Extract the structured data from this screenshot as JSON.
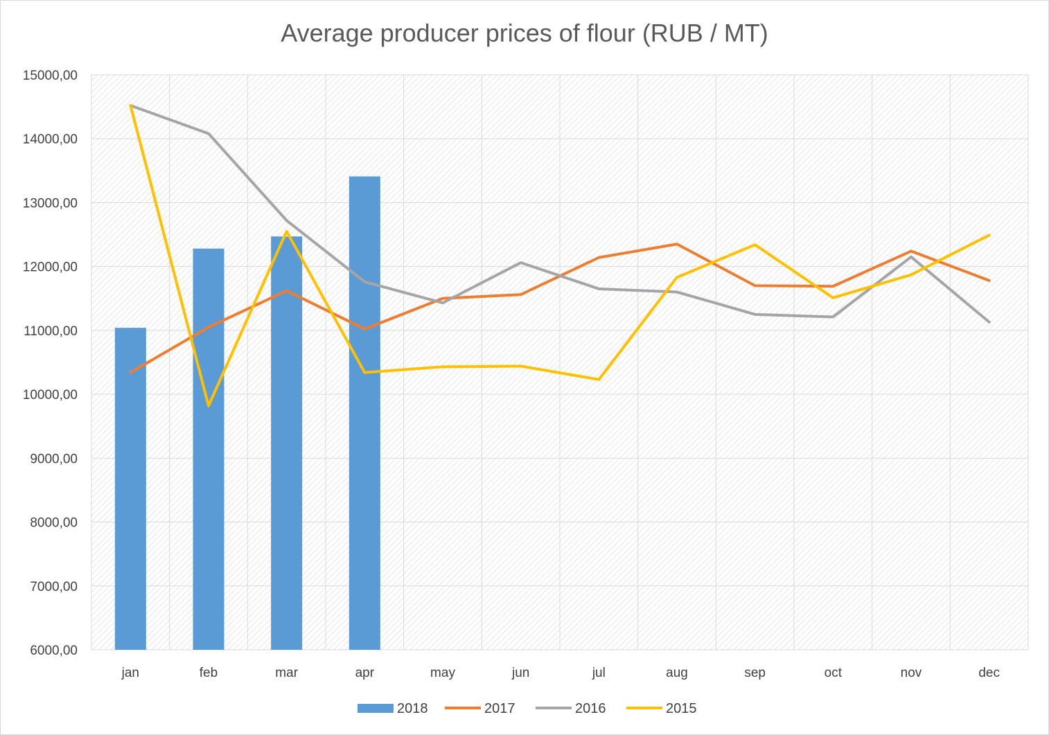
{
  "chart_data": {
    "type": "bar",
    "title": "Average producer prices of flour (RUB / MT)",
    "xlabel": "",
    "ylabel": "",
    "categories": [
      "jan",
      "feb",
      "mar",
      "apr",
      "may",
      "jun",
      "jul",
      "aug",
      "sep",
      "oct",
      "nov",
      "dec"
    ],
    "ylim": [
      6000,
      15000
    ],
    "yticks": [
      "6000,00",
      "7000,00",
      "8000,00",
      "9000,00",
      "10000,00",
      "11000,00",
      "12000,00",
      "13000,00",
      "14000,00",
      "15000,00"
    ],
    "grid": true,
    "legend_position": "bottom",
    "series": [
      {
        "name": "2018",
        "type": "bar",
        "color": "#5b9bd5",
        "values": [
          11040,
          12280,
          12470,
          13410,
          null,
          null,
          null,
          null,
          null,
          null,
          null,
          null
        ]
      },
      {
        "name": "2017",
        "type": "line",
        "color": "#ed7d31",
        "values": [
          10340,
          11050,
          11620,
          11020,
          11500,
          11560,
          12140,
          12350,
          11700,
          11690,
          12240,
          11780
        ]
      },
      {
        "name": "2016",
        "type": "line",
        "color": "#a5a5a5",
        "values": [
          14520,
          14080,
          12720,
          11760,
          11430,
          12060,
          11650,
          11600,
          11250,
          11210,
          12150,
          11130
        ]
      },
      {
        "name": "2015",
        "type": "line",
        "color": "#ffc000",
        "values": [
          14520,
          9820,
          12550,
          10340,
          10430,
          10440,
          10230,
          11830,
          12340,
          11510,
          11870,
          12490
        ]
      }
    ]
  }
}
